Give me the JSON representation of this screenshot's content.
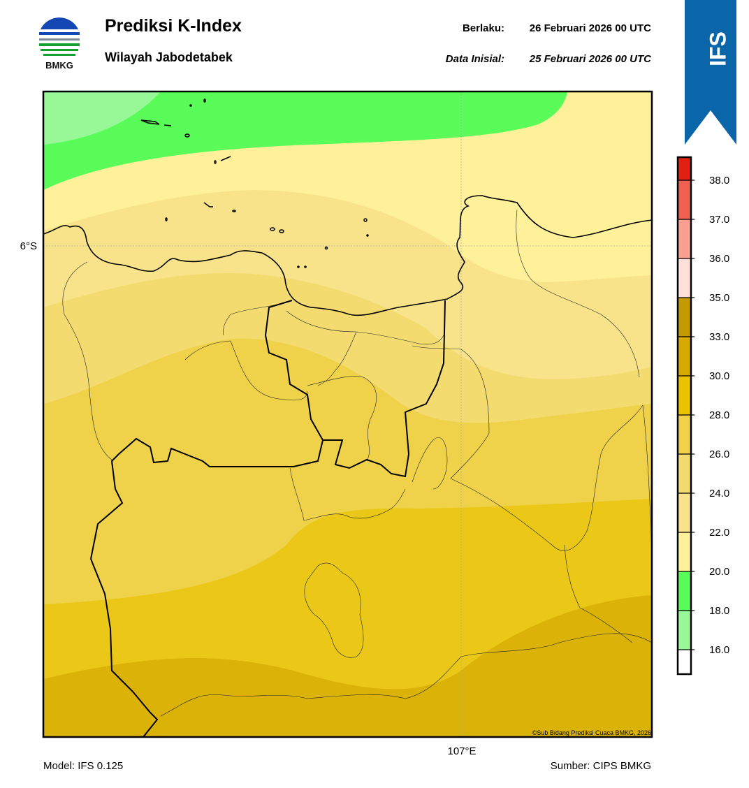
{
  "header": {
    "logo_text": "BMKG",
    "title": "Prediksi K-Index",
    "subtitle": "Wilayah Jabodetabek",
    "valid_label": "Berlaku:",
    "valid_date": "26 Februari 2026 00 UTC",
    "init_label": "Data Inisial:",
    "init_date": "25 Februari 2026 00 UTC",
    "model_badge": "IFS"
  },
  "map": {
    "lat_label": "6°S",
    "lon_label": "107°E",
    "credit": "©Sub Bidang Prediksi Cuaca BMKG, 2026"
  },
  "colorbar": {
    "ticks": [
      {
        "value": 16,
        "label": "16.0"
      },
      {
        "value": 18,
        "label": "18.0"
      },
      {
        "value": 20,
        "label": "20.0"
      },
      {
        "value": 22,
        "label": "22.0"
      },
      {
        "value": 24,
        "label": "24.0"
      },
      {
        "value": 26,
        "label": "26.0"
      },
      {
        "value": 28,
        "label": "28.0"
      },
      {
        "value": 30,
        "label": "30.0"
      },
      {
        "value": 33,
        "label": "33.0"
      },
      {
        "value": 35,
        "label": "35.0"
      },
      {
        "value": 36,
        "label": "36.0"
      },
      {
        "value": 37,
        "label": "37.0"
      },
      {
        "value": 38,
        "label": "38.0"
      }
    ],
    "colors": [
      "#ffffff",
      "#98f898",
      "#5afc5a",
      "#fff199",
      "#f8e38a",
      "#f4db70",
      "#efd24a",
      "#e9c300",
      "#d6aa00",
      "#c49a00",
      "#ffe0d8",
      "#f9a090",
      "#f06050",
      "#e02010"
    ]
  },
  "footer": {
    "model": "Model: IFS 0.125",
    "source": "Sumber: CIPS BMKG"
  }
}
